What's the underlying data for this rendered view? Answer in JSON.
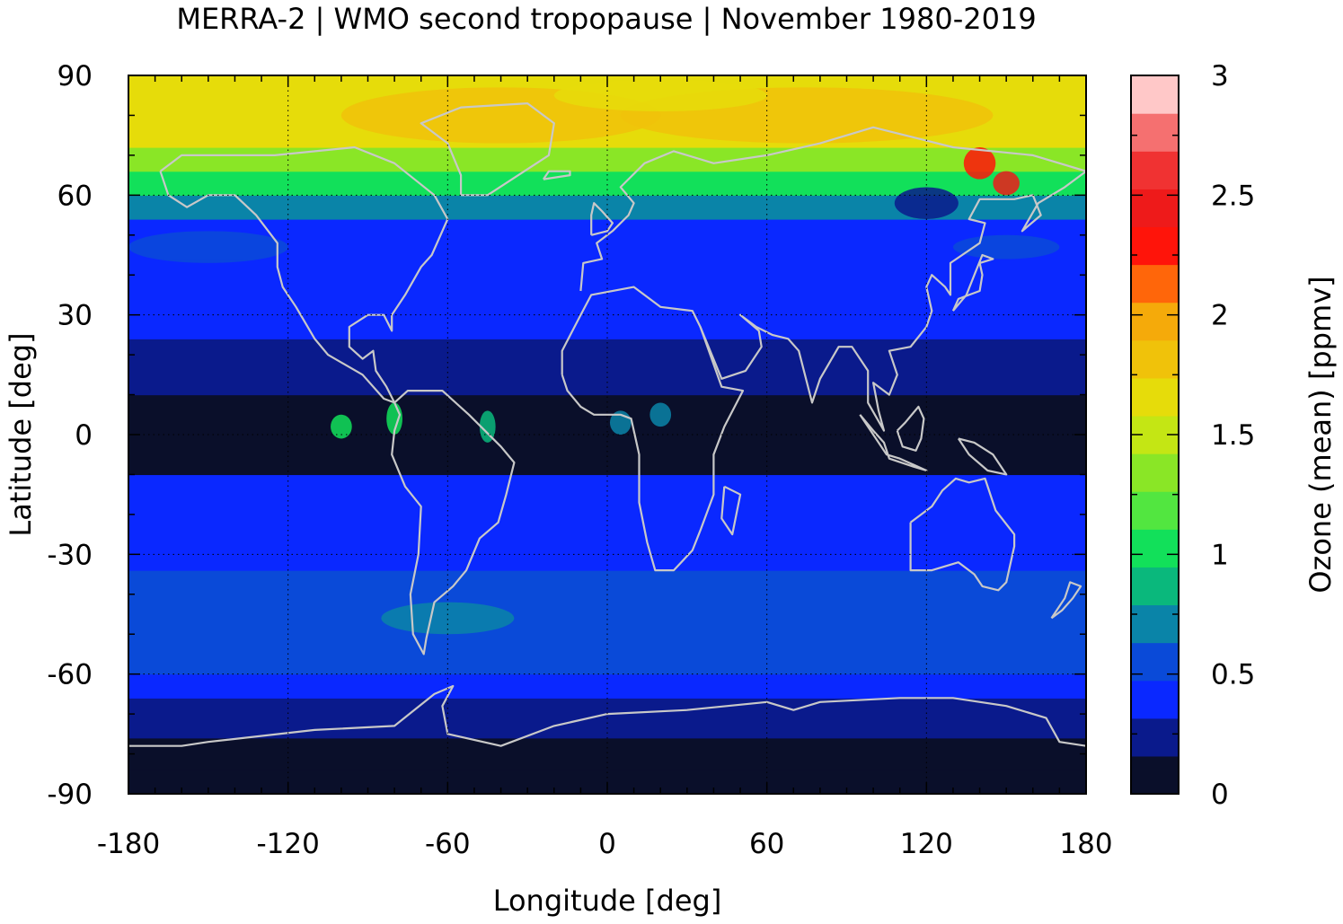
{
  "chart_data": {
    "type": "heatmap",
    "title": "MERRA-2 | WMO second tropopause | November 1980-2019",
    "xlabel": "Longitude [deg]",
    "ylabel": "Latitude [deg]",
    "colorbar_label": "Ozone (mean) [ppmv]",
    "xlim": [
      -180,
      180
    ],
    "ylim": [
      -90,
      90
    ],
    "x_ticks": [
      -180,
      -120,
      -60,
      0,
      60,
      120,
      180
    ],
    "y_ticks": [
      -90,
      -60,
      -30,
      0,
      30,
      60,
      90
    ],
    "colorbar_range": [
      0,
      3
    ],
    "colorbar_ticks": [
      0,
      0.5,
      1,
      1.5,
      2,
      2.5,
      3
    ],
    "colorbar_tick_labels": [
      "0",
      "0.5",
      "1",
      "1.5",
      "2",
      "2.5",
      "3"
    ],
    "grid": true,
    "colors": [
      "#0a0f2a",
      "#0a1a8c",
      "#0a28ff",
      "#0a4ad8",
      "#0a84a8",
      "#0ab87c",
      "#12e05a",
      "#52e640",
      "#8ae626",
      "#c4e614",
      "#e6dc0a",
      "#f0c20a",
      "#f5aa0a",
      "#ff660a",
      "#ff140a",
      "#ee1a1a",
      "#f03232",
      "#f57070",
      "#ffc8c8"
    ],
    "zonal_bands": [
      {
        "lat": [
          -90,
          -84
        ],
        "ozone": 0.15
      },
      {
        "lat": [
          -84,
          -76
        ],
        "ozone": 0.1
      },
      {
        "lat": [
          -76,
          -66
        ],
        "ozone": 0.25
      },
      {
        "lat": [
          -66,
          -60
        ],
        "ozone": 0.4
      },
      {
        "lat": [
          -60,
          -52
        ],
        "ozone": 0.55
      },
      {
        "lat": [
          -52,
          -34
        ],
        "ozone": 0.6
      },
      {
        "lat": [
          -34,
          -20
        ],
        "ozone": 0.45
      },
      {
        "lat": [
          -20,
          -10
        ],
        "ozone": 0.35
      },
      {
        "lat": [
          -10,
          10
        ],
        "ozone": 0.1
      },
      {
        "lat": [
          10,
          24
        ],
        "ozone": 0.2
      },
      {
        "lat": [
          24,
          44
        ],
        "ozone": 0.35
      },
      {
        "lat": [
          44,
          54
        ],
        "ozone": 0.45
      },
      {
        "lat": [
          54,
          60
        ],
        "ozone": 0.65
      },
      {
        "lat": [
          60,
          66
        ],
        "ozone": 1.05
      },
      {
        "lat": [
          66,
          72
        ],
        "ozone": 1.3
      },
      {
        "lat": [
          72,
          90
        ],
        "ozone": 1.65
      }
    ]
  }
}
